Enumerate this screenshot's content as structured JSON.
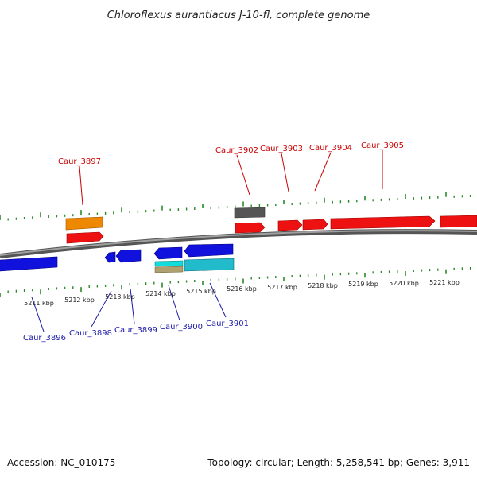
{
  "title": "Chloroflexus aurantiacus J-10-fl, complete genome",
  "footer": {
    "accession": "Accession: NC_010175",
    "topology": "Topology: circular; Length: 5,258,541 bp; Genes: 3,911"
  },
  "colors": {
    "forward_label": "#cc0000",
    "reverse_label": "#1a1aaa",
    "tick": "#2a8a2a",
    "backbone": "#7a7a7a"
  },
  "kbp_ticks": [
    "5211 kbp",
    "5212 kbp",
    "5213 kbp",
    "5214 kbp",
    "5215 kbp",
    "5216 kbp",
    "5217 kbp",
    "5218 kbp",
    "5219 kbp",
    "5220 kbp",
    "5221 kbp"
  ],
  "forward_labels": [
    "Caur_3897",
    "Caur_3902",
    "Caur_3903",
    "Caur_3904",
    "Caur_3905"
  ],
  "reverse_labels": [
    "Caur_3896",
    "Caur_3898",
    "Caur_3899",
    "Caur_3900",
    "Caur_3901"
  ],
  "feature_colors": {
    "forward_cds": "#ee1111",
    "reverse_cds": "#1111dd",
    "gene_orange": "#ee8800",
    "gene_gray": "#555555",
    "gene_cyan": "#22bbcc",
    "gene_khaki": "#b0a070",
    "gene_cyan_bright": "#11dddd"
  }
}
